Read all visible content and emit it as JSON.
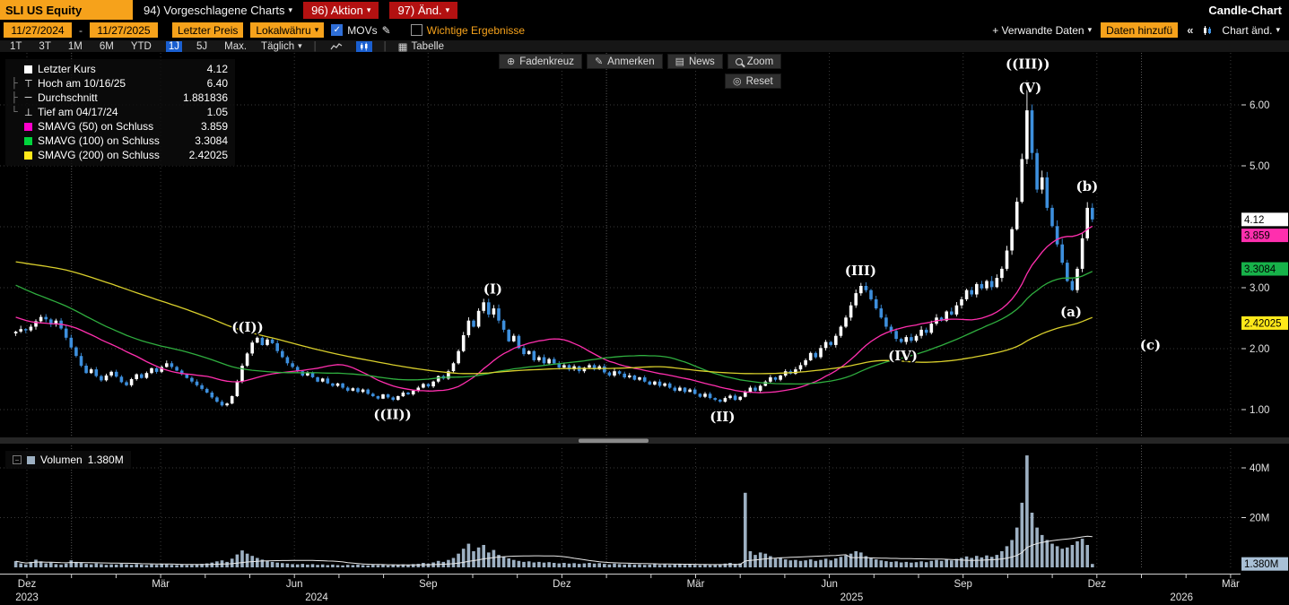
{
  "app": {
    "right_title": "Candle-Chart"
  },
  "topbar": {
    "ticker": "SLI US Equity",
    "menu_charts": "94) Vorgeschlagene Charts",
    "menu_action": "96) Aktion",
    "menu_change": "97) Änd."
  },
  "controls": {
    "date_from": "11/27/2024",
    "date_to": "11/27/2025",
    "date_separator": "-",
    "price_mode": "Letzter Preis",
    "currency": "Lokalwähru",
    "movs_label": "MOVs",
    "movs_checked": true,
    "events_label": "Wichtige Ergebnisse",
    "events_checked": false,
    "related_data": "+ Verwandte Daten",
    "add_data": "Daten hinzufü",
    "chart_change": "Chart änd."
  },
  "toolbar": {
    "periods": [
      "1T",
      "3T",
      "1M",
      "6M",
      "YTD",
      "1J",
      "5J",
      "Max."
    ],
    "selected_period": "1J",
    "frequency": "Täglich",
    "table_label": "Tabelle"
  },
  "icons": {
    "caret": "▾",
    "checkmark": "✓",
    "collapse_left": "«",
    "crosshair": "⊕",
    "pencil": "✎",
    "news": "▤",
    "reset": "◎",
    "table": "▦",
    "minus": "−"
  },
  "float_tools": {
    "crosshair": "Fadenkreuz",
    "annotate": "Anmerken",
    "news": "News",
    "zoom": "Zoom",
    "reset": "Reset"
  },
  "legend": {
    "items": [
      {
        "name": "letzter-kurs",
        "color": "#ffffff",
        "label": "Letzter Kurs",
        "value": "4.12"
      },
      {
        "name": "hoch",
        "glyph": "⊤",
        "tree": "├",
        "label": "Hoch am 10/16/25",
        "value": "6.40"
      },
      {
        "name": "durchschnitt",
        "glyph": "─",
        "tree": "├",
        "label": "Durchschnitt",
        "value": "1.881836"
      },
      {
        "name": "tief",
        "glyph": "⊥",
        "tree": "└",
        "label": "Tief am 04/17/24",
        "value": "1.05"
      },
      {
        "name": "smavg-50",
        "color": "#ff00cc",
        "label": "SMAVG (50)  on Schluss",
        "value": "3.859"
      },
      {
        "name": "smavg-100",
        "color": "#00d43c",
        "label": "SMAVG (100)  on Schluss",
        "value": "3.3084"
      },
      {
        "name": "smavg-200",
        "color": "#ffe81a",
        "label": "SMAVG (200)  on Schluss",
        "value": "2.42025"
      }
    ]
  },
  "volume_legend": {
    "label": "Volumen",
    "value": "1.380M",
    "color": "#9db0c2"
  },
  "chart_data": {
    "type": "candlestick+volume",
    "title": "SLI US Equity Candle-Chart, daily, Nov 2023 - Nov 2025 (axis drawn to Mar 2026)",
    "last_price": 4.12,
    "high": {
      "date": "10/16/25",
      "value": 6.4
    },
    "low": {
      "date": "04/17/24",
      "value": 1.05
    },
    "average": 1.881836,
    "first_open": 2.25,
    "start_month_offset": -0.25,
    "month_step": 0.11285,
    "colors": {
      "up": "#ffffff",
      "down": "#3d8fdd",
      "volume": "#9db0c2"
    },
    "price_axis": {
      "grid_values": [
        1,
        2,
        3,
        4,
        5,
        6
      ],
      "ticks": [
        {
          "value": 6,
          "label": "6.00"
        },
        {
          "value": 5,
          "label": "5.00"
        },
        {
          "value": 3,
          "label": "3.00"
        },
        {
          "value": 2,
          "label": "2.00"
        },
        {
          "value": 1,
          "label": "1.00"
        }
      ],
      "marker_boxes": [
        {
          "value": 4.12,
          "label": "4.12",
          "bg": "#ffffff"
        },
        {
          "value": 3.859,
          "label": "3.859",
          "bg": "#ff2fae"
        },
        {
          "value": 3.3084,
          "label": "3.3084",
          "bg": "#17b24a"
        },
        {
          "value": 2.42025,
          "label": "2.42025",
          "bg": "#ffe81a"
        }
      ]
    },
    "volume_axis": {
      "ticks": [
        40,
        20
      ],
      "labels": [
        "40M",
        "20M"
      ],
      "last_volume": {
        "value": 1.38,
        "label": "1.380M",
        "bg": "#a9c0d6"
      }
    },
    "x_axis": {
      "months": [
        {
          "label": "Dez",
          "m": 0
        },
        {
          "label": "Mär",
          "m": 3
        },
        {
          "label": "Jun",
          "m": 6
        },
        {
          "label": "Sep",
          "m": 9
        },
        {
          "label": "Dez",
          "m": 12
        },
        {
          "label": "Mär",
          "m": 15
        },
        {
          "label": "Jun",
          "m": 18
        },
        {
          "label": "Sep",
          "m": 21
        },
        {
          "label": "Dez",
          "m": 24
        },
        {
          "label": "Mär",
          "m": 27
        }
      ],
      "years": [
        {
          "label": "2023",
          "m": 0
        },
        {
          "label": "2024",
          "m": 6.5
        },
        {
          "label": "2025",
          "m": 18.5
        },
        {
          "label": "2026",
          "m": 25.9
        }
      ],
      "year_lines": [
        1,
        13,
        25
      ]
    },
    "smavg": {
      "lines": [
        {
          "period": 50,
          "window": 21,
          "color": "#ff2fae",
          "end_value": 3.859
        },
        {
          "period": 100,
          "window": 42,
          "color": "#2fae3f",
          "end_value": 3.3084
        },
        {
          "period": 200,
          "window": 84,
          "color": "#d9cf2c",
          "end_value": 2.42025
        }
      ]
    },
    "wave_annotations": [
      {
        "text": "((I))",
        "m": 4.95,
        "p": 2.35
      },
      {
        "text": "((II))",
        "m": 8.2,
        "p": 0.92
      },
      {
        "text": "(I)",
        "m": 10.45,
        "p": 2.98
      },
      {
        "text": "(II)",
        "m": 15.6,
        "p": 0.88
      },
      {
        "text": "(III)",
        "m": 18.7,
        "p": 3.28
      },
      {
        "text": "(IV)",
        "m": 19.65,
        "p": 1.88
      },
      {
        "text": "((III))",
        "m": 22.45,
        "p": 6.67
      },
      {
        "text": "(V)",
        "m": 22.5,
        "p": 6.28
      },
      {
        "text": "(a)",
        "m": 23.42,
        "p": 2.6
      },
      {
        "text": "(b)",
        "m": 23.78,
        "p": 4.66
      },
      {
        "text": "(c)",
        "m": 25.2,
        "p": 2.06
      }
    ],
    "closes": [
      2.28,
      2.32,
      2.3,
      2.36,
      2.45,
      2.52,
      2.48,
      2.4,
      2.46,
      2.33,
      2.18,
      2.02,
      1.88,
      1.72,
      1.6,
      1.66,
      1.55,
      1.48,
      1.56,
      1.62,
      1.54,
      1.45,
      1.4,
      1.5,
      1.58,
      1.52,
      1.6,
      1.68,
      1.62,
      1.7,
      1.76,
      1.7,
      1.64,
      1.58,
      1.52,
      1.46,
      1.4,
      1.34,
      1.28,
      1.2,
      1.13,
      1.07,
      1.1,
      1.22,
      1.46,
      1.72,
      1.92,
      2.1,
      2.18,
      2.06,
      2.15,
      2.09,
      1.96,
      1.86,
      1.76,
      1.7,
      1.63,
      1.56,
      1.61,
      1.53,
      1.46,
      1.51,
      1.43,
      1.39,
      1.43,
      1.36,
      1.31,
      1.35,
      1.29,
      1.33,
      1.26,
      1.22,
      1.18,
      1.25,
      1.2,
      1.16,
      1.22,
      1.28,
      1.25,
      1.31,
      1.36,
      1.42,
      1.38,
      1.46,
      1.55,
      1.51,
      1.63,
      1.76,
      1.96,
      2.22,
      2.46,
      2.36,
      2.62,
      2.76,
      2.56,
      2.66,
      2.46,
      2.31,
      2.12,
      2.21,
      2.01,
      1.91,
      1.96,
      1.81,
      1.86,
      1.76,
      1.83,
      1.76,
      1.69,
      1.73,
      1.66,
      1.71,
      1.63,
      1.69,
      1.73,
      1.66,
      1.71,
      1.61,
      1.56,
      1.63,
      1.59,
      1.53,
      1.56,
      1.49,
      1.53,
      1.46,
      1.41,
      1.46,
      1.39,
      1.43,
      1.36,
      1.31,
      1.36,
      1.29,
      1.33,
      1.26,
      1.21,
      1.26,
      1.19,
      1.16,
      1.13,
      1.19,
      1.23,
      1.16,
      1.21,
      1.29,
      1.36,
      1.31,
      1.39,
      1.46,
      1.53,
      1.49,
      1.56,
      1.63,
      1.59,
      1.66,
      1.73,
      1.81,
      1.93,
      1.86,
      2.01,
      2.11,
      2.06,
      2.21,
      2.36,
      2.51,
      2.71,
      2.91,
      3.03,
      2.96,
      2.81,
      2.66,
      2.51,
      2.36,
      2.29,
      2.16,
      2.11,
      2.19,
      2.13,
      2.21,
      2.31,
      2.26,
      2.41,
      2.51,
      2.46,
      2.61,
      2.56,
      2.71,
      2.81,
      2.96,
      2.89,
      3.06,
      2.99,
      3.11,
      3.01,
      3.16,
      3.31,
      3.61,
      3.96,
      4.41,
      5.11,
      5.91,
      5.21,
      4.61,
      4.81,
      4.31,
      4.01,
      3.71,
      3.41,
      3.11,
      2.96,
      3.31,
      3.81,
      4.31,
      4.12
    ],
    "pre_closes": [
      3.3,
      3.34,
      3.38,
      3.42,
      3.46,
      3.5,
      3.54,
      3.58,
      3.62,
      3.66,
      3.7,
      3.72,
      3.74,
      3.76,
      3.78,
      3.8,
      3.82,
      3.84,
      3.86,
      3.88,
      3.9,
      3.88,
      3.92,
      3.9,
      3.94,
      3.92,
      3.96,
      3.94,
      3.98,
      3.96,
      4.0,
      3.98,
      3.96,
      3.98,
      3.94,
      3.96,
      3.92,
      3.94,
      3.9,
      3.92,
      3.95,
      3.9,
      3.92,
      3.88,
      3.9,
      3.85,
      3.88,
      3.82,
      3.85,
      3.8,
      3.78,
      3.74,
      3.7,
      3.65,
      3.6,
      3.55,
      3.48,
      3.42,
      3.35,
      3.28,
      3.2,
      3.12,
      3.05,
      2.98,
      2.9,
      2.84,
      2.78,
      2.72,
      2.66,
      2.6,
      2.55,
      2.52,
      2.5,
      2.48,
      2.46,
      2.44,
      2.44,
      2.42,
      2.42,
      2.4,
      2.38,
      2.36,
      2.35,
      2.34
    ],
    "volumes_millions": [
      2.5,
      1.6,
      1.2,
      2.2,
      3.1,
      2.4,
      1.6,
      1.9,
      1.3,
      1.1,
      1.5,
      2.8,
      2.2,
      1.8,
      1.4,
      1.2,
      1.6,
      1.3,
      1.0,
      1.2,
      1.1,
      1.4,
      1.2,
      1.0,
      1.3,
      1.1,
      0.9,
      1.2,
      1.0,
      1.4,
      1.2,
      1.0,
      0.9,
      1.1,
      0.9,
      1.0,
      1.2,
      1.4,
      1.6,
      1.9,
      2.4,
      2.8,
      2.2,
      3.5,
      5.2,
      6.8,
      5.5,
      4.6,
      3.8,
      3.1,
      2.6,
      2.2,
      1.9,
      1.7,
      1.5,
      1.3,
      1.2,
      1.4,
      1.1,
      1.3,
      1.0,
      1.2,
      0.9,
      1.1,
      0.9,
      0.8,
      1.0,
      0.9,
      1.1,
      0.9,
      0.8,
      1.0,
      0.9,
      1.1,
      0.8,
      0.9,
      1.0,
      1.2,
      1.0,
      1.3,
      1.4,
      1.8,
      1.5,
      2.0,
      2.6,
      2.2,
      3.0,
      3.8,
      5.5,
      7.5,
      9.5,
      6.5,
      8.0,
      9.0,
      6.0,
      7.0,
      5.0,
      4.2,
      3.6,
      3.0,
      2.6,
      2.2,
      2.4,
      2.0,
      2.2,
      1.9,
      2.1,
      1.8,
      1.6,
      1.8,
      1.5,
      1.7,
      1.4,
      1.6,
      1.8,
      1.5,
      1.7,
      1.4,
      1.2,
      1.5,
      1.3,
      1.1,
      1.3,
      1.1,
      1.2,
      1.0,
      1.1,
      1.3,
      1.0,
      1.2,
      1.0,
      1.1,
      1.3,
      1.0,
      1.2,
      1.0,
      0.9,
      1.1,
      0.9,
      1.0,
      1.2,
      1.5,
      1.8,
      1.4,
      1.6,
      30.0,
      6.5,
      5.0,
      6.0,
      5.5,
      4.5,
      3.5,
      3.8,
      3.2,
      2.8,
      3.0,
      2.6,
      2.8,
      3.2,
      2.6,
      3.0,
      3.5,
      2.8,
      3.6,
      4.2,
      4.8,
      5.5,
      6.5,
      6.0,
      4.5,
      3.8,
      3.2,
      2.8,
      2.5,
      2.2,
      2.4,
      2.0,
      2.2,
      1.9,
      2.1,
      2.4,
      2.1,
      2.6,
      3.0,
      2.6,
      3.2,
      2.8,
      3.4,
      3.8,
      4.4,
      3.8,
      4.6,
      4.0,
      4.8,
      4.2,
      5.0,
      6.5,
      8.5,
      11.0,
      16.0,
      26.0,
      45.0,
      22.0,
      16.0,
      13.0,
      11.0,
      9.5,
      8.5,
      7.5,
      8.0,
      9.0,
      10.5,
      11.5,
      9.0,
      1.38
    ]
  }
}
